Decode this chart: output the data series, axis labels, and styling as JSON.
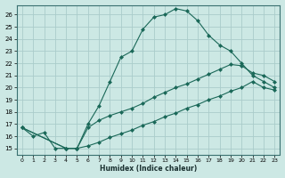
{
  "xlabel": "Humidex (Indice chaleur)",
  "bg_color": "#cce8e4",
  "grid_color": "#aaccca",
  "line_color": "#1a6858",
  "xlim": [
    -0.5,
    23.5
  ],
  "ylim": [
    14.5,
    26.8
  ],
  "xticks": [
    0,
    1,
    2,
    3,
    4,
    5,
    6,
    7,
    8,
    9,
    10,
    11,
    12,
    13,
    14,
    15,
    16,
    17,
    18,
    19,
    20,
    21,
    22,
    23
  ],
  "yticks": [
    15,
    16,
    17,
    18,
    19,
    20,
    21,
    22,
    23,
    24,
    25,
    26
  ],
  "line1_x": [
    0,
    1,
    2,
    3,
    4,
    5,
    6,
    7,
    8,
    9,
    10,
    11,
    12,
    13,
    14,
    15,
    16,
    17,
    18,
    19,
    20,
    21,
    22,
    23
  ],
  "line1_y": [
    16.7,
    16.0,
    16.3,
    15.0,
    15.0,
    15.0,
    17.0,
    18.5,
    20.5,
    22.5,
    23.0,
    24.8,
    25.8,
    26.0,
    26.5,
    26.3,
    25.5,
    24.3,
    23.5,
    23.0,
    22.0,
    21.0,
    20.5,
    20.0
  ],
  "line2_x": [
    0,
    4,
    5,
    6,
    7,
    8,
    9,
    10,
    11,
    12,
    13,
    14,
    15,
    16,
    17,
    18,
    19,
    20,
    21,
    22,
    23
  ],
  "line2_y": [
    16.7,
    15.0,
    15.0,
    16.7,
    17.3,
    17.7,
    18.0,
    18.3,
    18.7,
    19.2,
    19.6,
    20.0,
    20.3,
    20.7,
    21.1,
    21.5,
    21.9,
    21.8,
    21.2,
    21.0,
    20.5
  ],
  "line3_x": [
    0,
    4,
    5,
    6,
    7,
    8,
    9,
    10,
    11,
    12,
    13,
    14,
    15,
    16,
    17,
    18,
    19,
    20,
    21,
    22,
    23
  ],
  "line3_y": [
    16.7,
    15.0,
    15.0,
    15.2,
    15.5,
    15.9,
    16.2,
    16.5,
    16.9,
    17.2,
    17.6,
    17.9,
    18.3,
    18.6,
    19.0,
    19.3,
    19.7,
    20.0,
    20.5,
    20.0,
    19.8
  ]
}
